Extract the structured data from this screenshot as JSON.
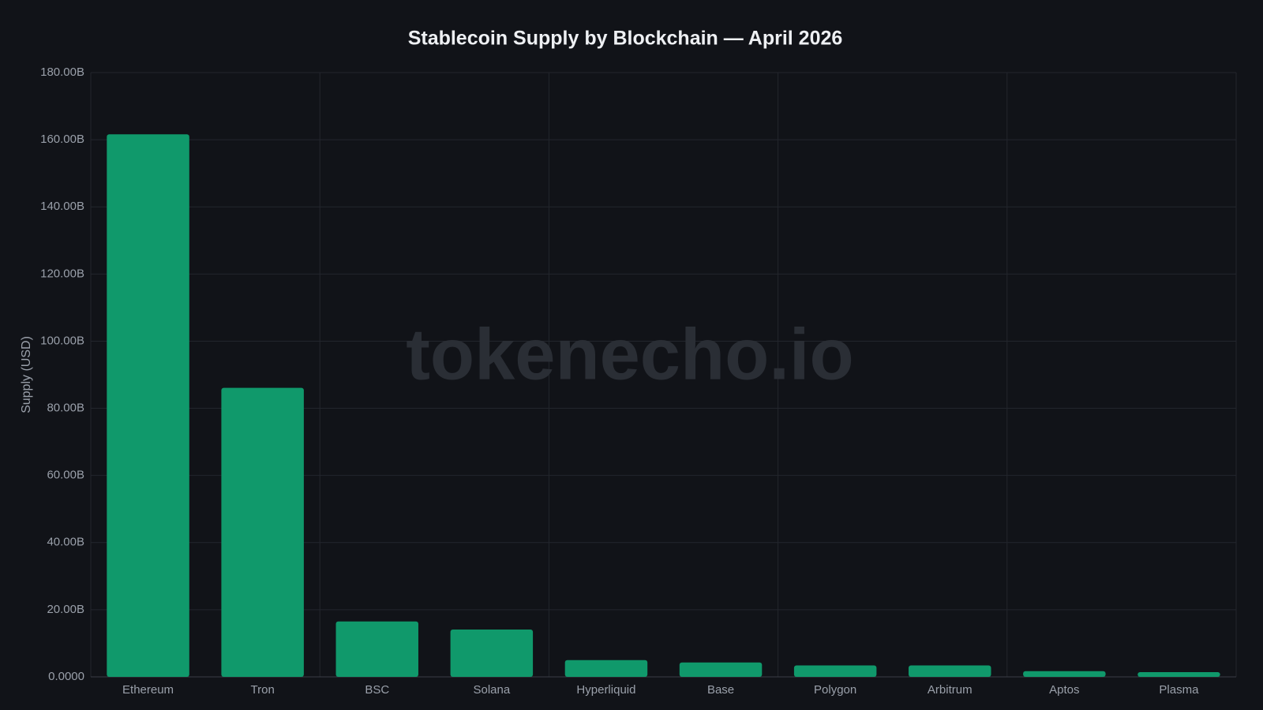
{
  "chart_data": {
    "type": "bar",
    "title": "Stablecoin Supply by Blockchain — April 2026",
    "y_label": "Supply (USD)",
    "watermark": "tokenecho.io",
    "categories": [
      "Ethereum",
      "Tron",
      "BSC",
      "Solana",
      "Hyperliquid",
      "Base",
      "Polygon",
      "Arbitrum",
      "Aptos",
      "Plasma"
    ],
    "values": [
      161.6,
      86.1,
      16.5,
      14.1,
      5.0,
      4.3,
      3.4,
      3.4,
      1.7,
      1.4
    ],
    "color": "#10996b",
    "ylim": [
      0,
      180
    ],
    "yticks": [
      {
        "value": 0,
        "label": "0.0000"
      },
      {
        "value": 20,
        "label": "20.00B"
      },
      {
        "value": 40,
        "label": "40.00B"
      },
      {
        "value": 60,
        "label": "60.00B"
      },
      {
        "value": 80,
        "label": "80.00B"
      },
      {
        "value": 100,
        "label": "100.00B"
      },
      {
        "value": 120,
        "label": "120.00B"
      },
      {
        "value": 140,
        "label": "140.00B"
      },
      {
        "value": 160,
        "label": "160.00B"
      },
      {
        "value": 180,
        "label": "180.00B"
      }
    ],
    "grid": true
  }
}
